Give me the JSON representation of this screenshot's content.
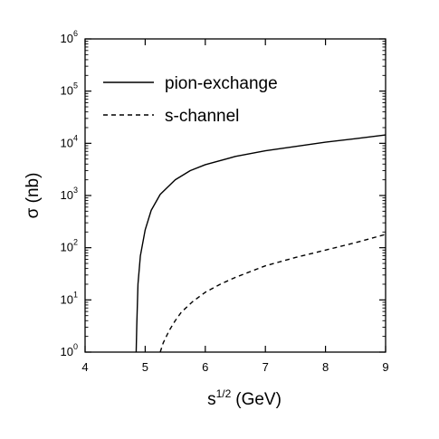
{
  "chart_data": {
    "type": "line",
    "xlabel_base": "s",
    "xlabel_sup": "1/2",
    "xlabel_unit": "(GeV)",
    "ylabel": "σ (nb)",
    "xlim": [
      4,
      9
    ],
    "ylim": [
      1,
      1000000
    ],
    "yscale": "log",
    "x_ticks": [
      "4",
      "5",
      "6",
      "7",
      "8",
      "9"
    ],
    "y_ticks": [
      {
        "base": "10",
        "exp": "0"
      },
      {
        "base": "10",
        "exp": "1"
      },
      {
        "base": "10",
        "exp": "2"
      },
      {
        "base": "10",
        "exp": "3"
      },
      {
        "base": "10",
        "exp": "4"
      },
      {
        "base": "10",
        "exp": "5"
      },
      {
        "base": "10",
        "exp": "6"
      }
    ],
    "legend_position": "top-left",
    "series": [
      {
        "name": "pion-exchange",
        "style": "solid",
        "color": "#000000",
        "x": [
          4.85,
          4.86,
          4.88,
          4.92,
          5.0,
          5.1,
          5.25,
          5.5,
          5.75,
          6.0,
          6.5,
          7.0,
          7.5,
          8.0,
          8.5,
          9.0
        ],
        "y": [
          1,
          3.2,
          20,
          70,
          220,
          520,
          1050,
          2000,
          3000,
          3900,
          5600,
          7200,
          8700,
          10500,
          12300,
          14500
        ]
      },
      {
        "name": "s-channel",
        "style": "dashed",
        "color": "#000000",
        "x": [
          5.25,
          5.3,
          5.4,
          5.5,
          5.6,
          5.8,
          6.0,
          6.25,
          6.5,
          7.0,
          7.5,
          8.0,
          8.5,
          9.0
        ],
        "y": [
          1,
          1.5,
          2.6,
          4,
          5.8,
          9.5,
          14,
          20,
          27,
          45,
          65,
          90,
          125,
          180
        ]
      }
    ]
  }
}
